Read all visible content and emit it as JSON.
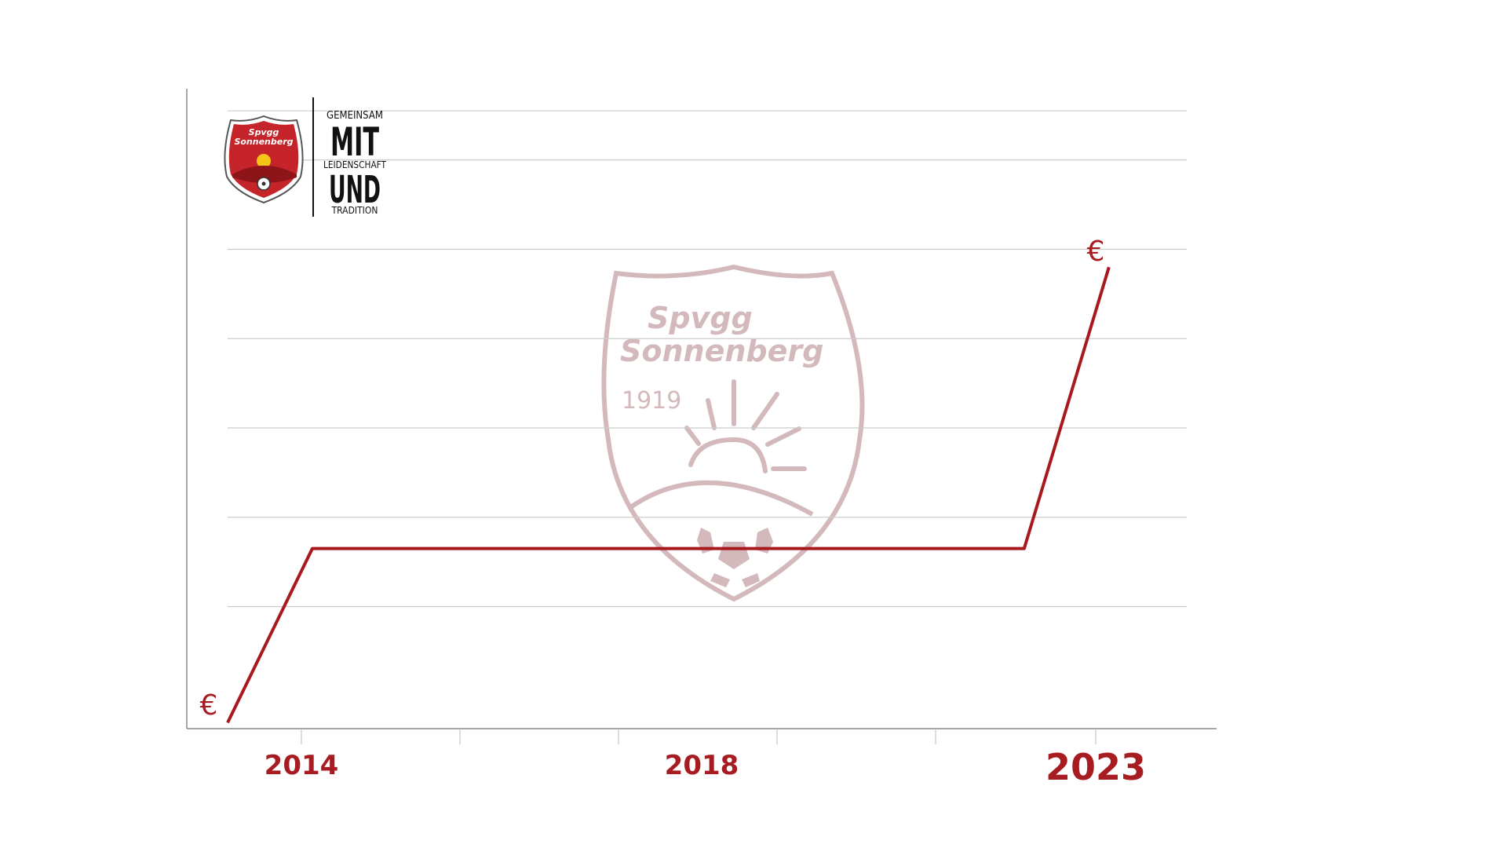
{
  "chart_data": {
    "type": "line",
    "title": "",
    "xlabel": "",
    "ylabel": "",
    "x_ticks": [
      "2014",
      "2018",
      "2023"
    ],
    "x_range": [
      2012.6,
      2023.9
    ],
    "ylim": [
      0,
      8
    ],
    "grid": true,
    "series": [
      {
        "x": [
          2012.6,
          2013.6,
          2022.0,
          2023.0
        ],
        "y": [
          0.7,
          2.65,
          2.65,
          5.8
        ]
      }
    ],
    "annotations": [
      {
        "text": "€",
        "x": 2012.5,
        "y": 0.3
      },
      {
        "text": "€",
        "x": 2023.0,
        "y": 6.1
      }
    ]
  },
  "logo": {
    "club_name_line1": "Spvgg",
    "club_name_line2": "Sonnenberg",
    "founded": "1919"
  },
  "slogan": {
    "line1": "GEMEINSAM",
    "line2": "MIT",
    "line3": "LEIDENSCHAFT",
    "line4": "UND",
    "line5": "TRADITION"
  },
  "colors": {
    "accent": "#a61c20",
    "line": "#a8191e",
    "grid": "#cccccc",
    "axis": "#888888",
    "watermark": "#c8a8aa"
  }
}
